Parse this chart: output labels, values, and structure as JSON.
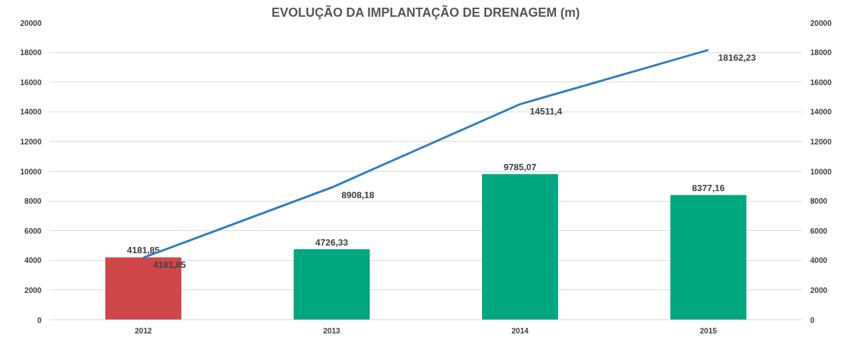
{
  "chart_data": {
    "type": "bar",
    "title": "EVOLUÇÃO DA IMPLANTAÇÃO DE DRENAGEM (m)",
    "categories": [
      "2012",
      "2013",
      "2014",
      "2015"
    ],
    "series": [
      {
        "colors": [
          "#d0474a",
          "#00a77f",
          "#00a77f",
          "#00a77f"
        ],
        "values": [
          4181.85,
          4726.33,
          9785.07,
          8377.16
        ],
        "value_labels": [
          "4181,85",
          "4726,33",
          "9785,07",
          "8377,16"
        ]
      },
      {
        "type": "line",
        "color": "#2e7dc0",
        "values": [
          4181.85,
          8908.18,
          14511.4,
          18162.23
        ],
        "value_labels": [
          "4181,85",
          "8908,18",
          "14511,4",
          "18162,23"
        ]
      }
    ],
    "ylim": [
      0,
      20000
    ],
    "yticks": [
      0,
      2000,
      4000,
      6000,
      8000,
      10000,
      12000,
      14000,
      16000,
      18000,
      20000
    ],
    "y2lim": [
      0,
      20000
    ],
    "y2ticks": [
      0,
      2000,
      4000,
      6000,
      8000,
      10000,
      12000,
      14000,
      16000,
      18000,
      20000
    ],
    "grid": "y"
  }
}
